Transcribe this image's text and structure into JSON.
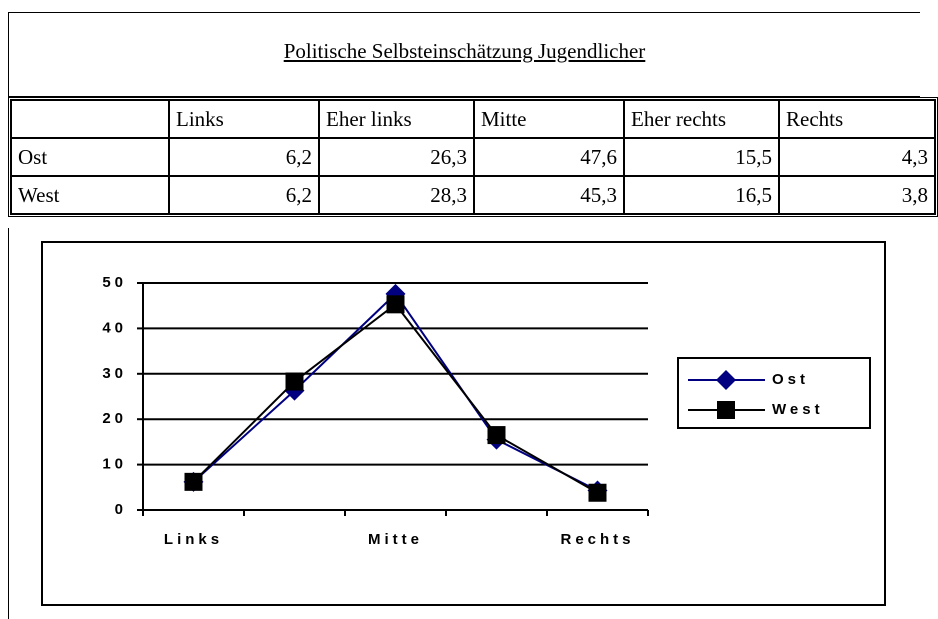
{
  "title": "Politische Selbsteinschätzung Jugendlicher",
  "table": {
    "header": [
      "Links",
      "Eher links",
      "Mitte",
      "Eher rechts",
      "Rechts"
    ],
    "rows": [
      {
        "label": "Ost",
        "cells": [
          "6,2",
          "26,3",
          "47,6",
          "15,5",
          "4,3"
        ]
      },
      {
        "label": "West",
        "cells": [
          "6,2",
          "28,3",
          "45,3",
          "16,5",
          "3,8"
        ]
      }
    ]
  },
  "chart_data": {
    "type": "line",
    "categories": [
      "Links",
      null,
      "Mitte",
      null,
      "Rechts"
    ],
    "series": [
      {
        "name": "Ost",
        "color": "#000080",
        "marker": "diamond",
        "values": [
          6.2,
          26.3,
          47.6,
          15.5,
          4.3
        ]
      },
      {
        "name": "West",
        "color": "#000000",
        "marker": "square",
        "values": [
          6.2,
          28.3,
          45.3,
          16.5,
          3.8
        ]
      }
    ],
    "ylim": [
      0,
      50
    ],
    "yticks": [
      0,
      10,
      20,
      30,
      40,
      50
    ],
    "grid": true,
    "legend": "right"
  }
}
